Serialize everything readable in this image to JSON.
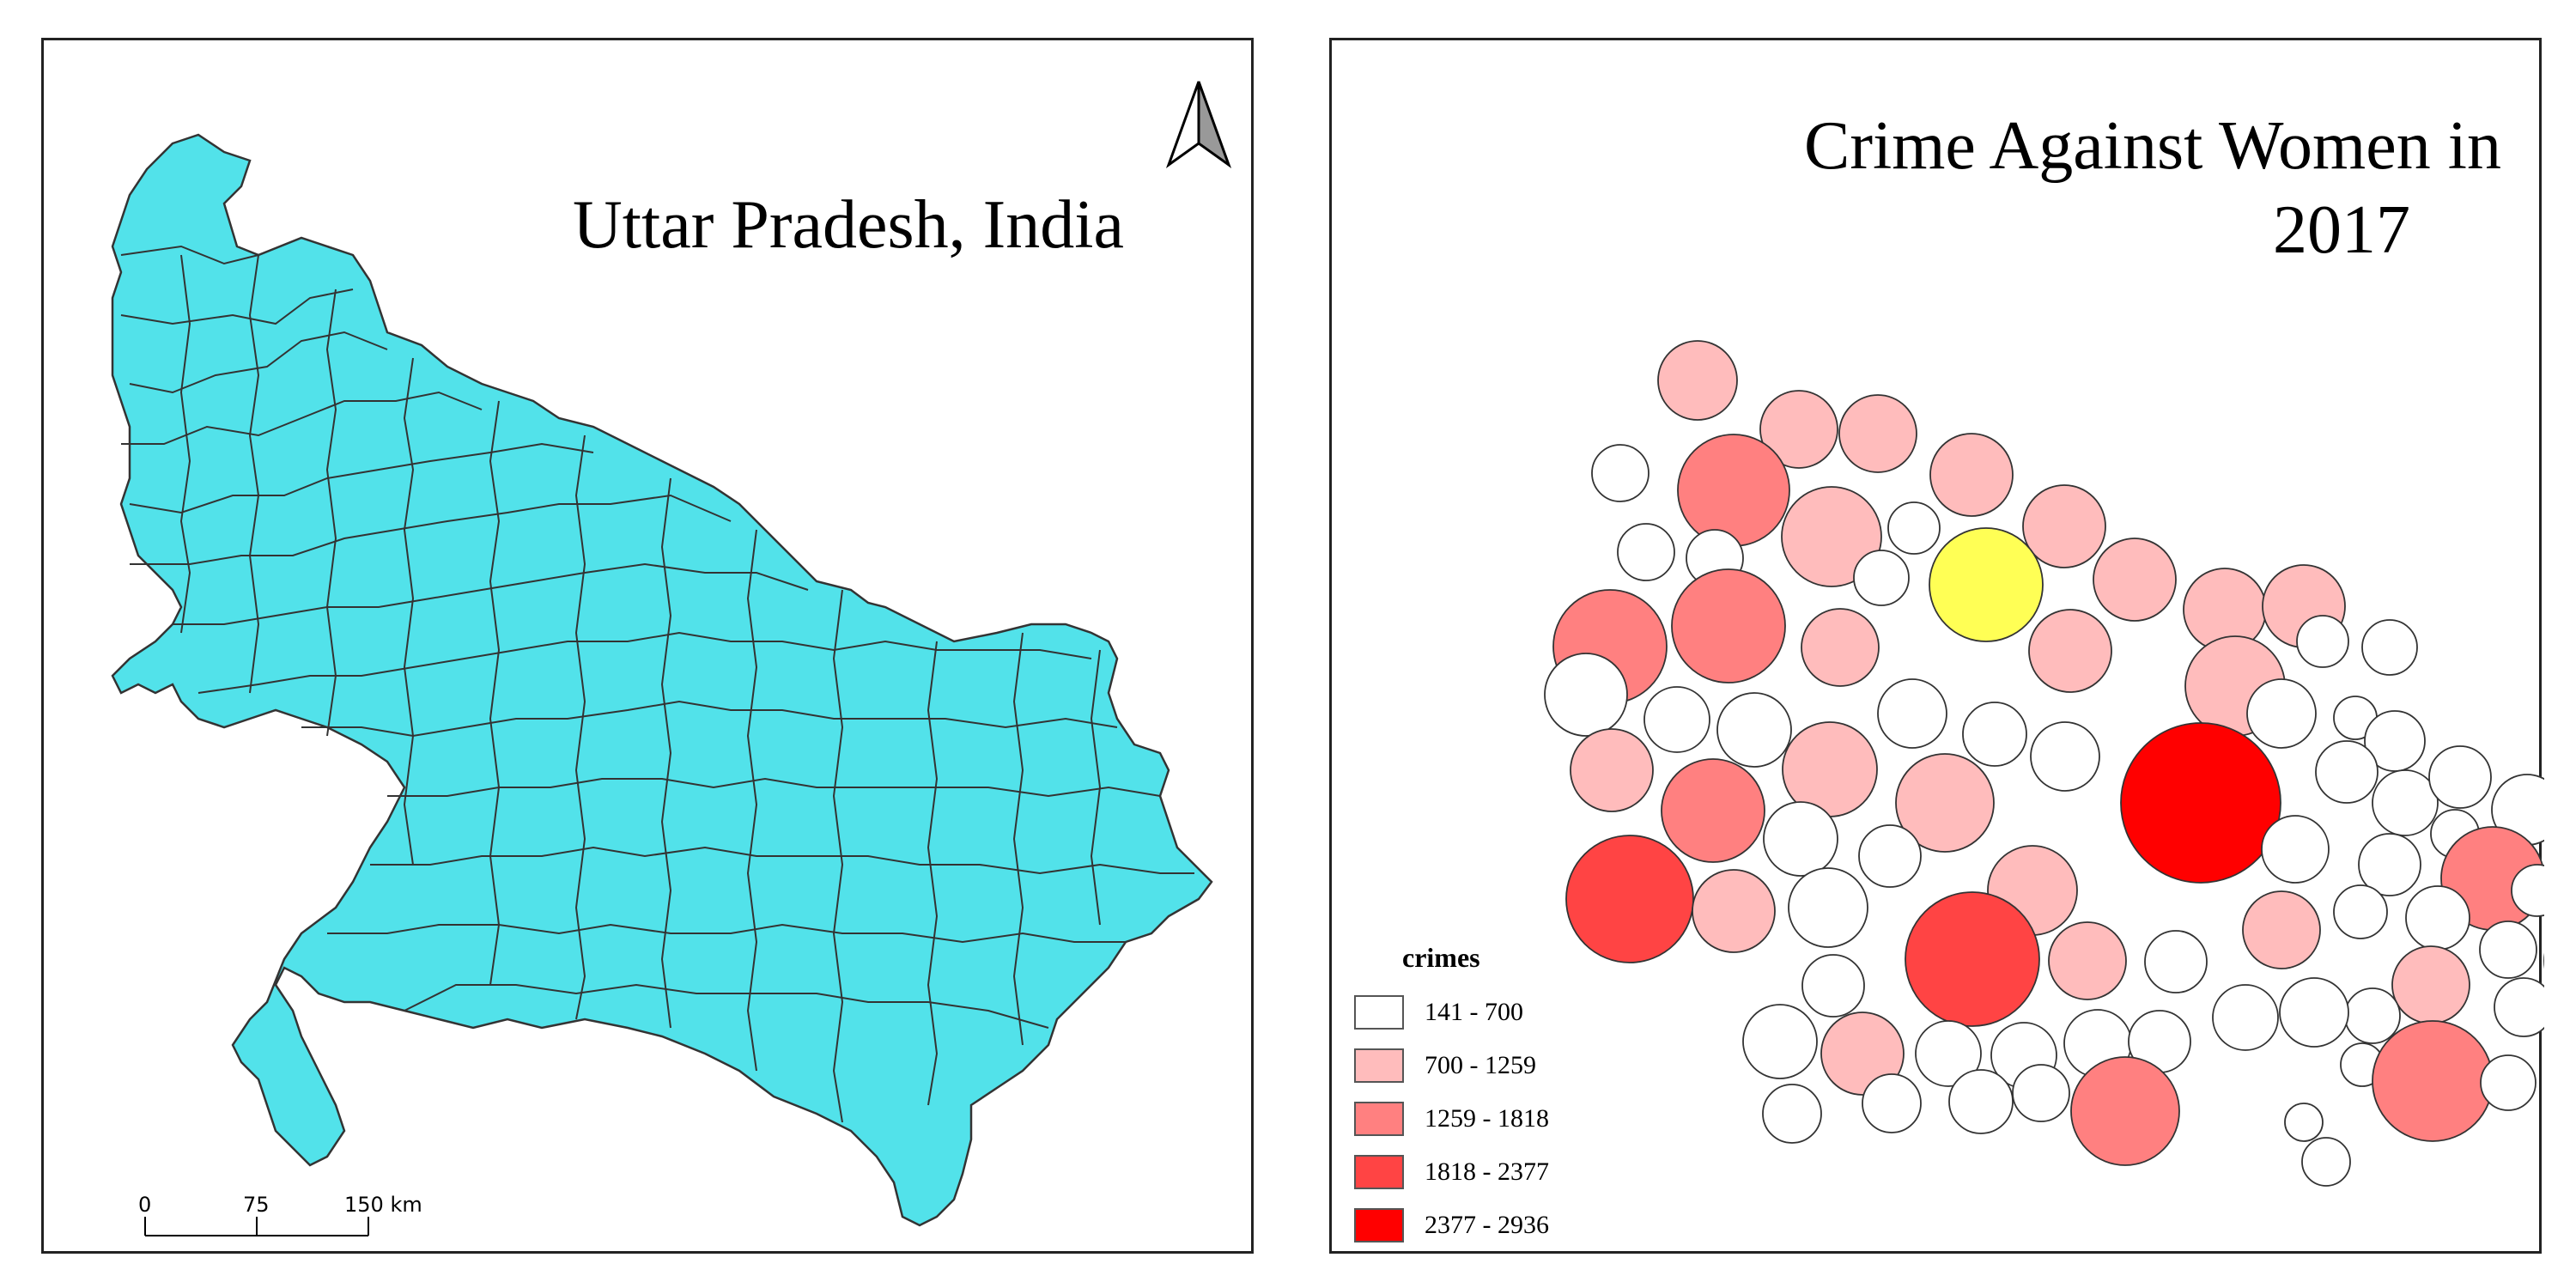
{
  "left_map": {
    "title": "Uttar Pradesh, India",
    "fill_color": "#52e2ea",
    "border_color": "#333333",
    "north_arrow_icon": "north-arrow-icon",
    "scale_bar": {
      "labels": [
        "0",
        "75",
        "150 km"
      ]
    }
  },
  "right_map": {
    "title_line1": "Crime Against Women in",
    "title_line2": "2017",
    "legend": {
      "title": "crimes",
      "classes": [
        {
          "label": "141 - 700",
          "color": "#ffffff"
        },
        {
          "label": "700 - 1259",
          "color": "#ffbcbc"
        },
        {
          "label": "1259 - 1818",
          "color": "#ff8080"
        },
        {
          "label": "1818 - 2377",
          "color": "#ff4444"
        },
        {
          "label": "2377 - 2936",
          "color": "#ff0000"
        }
      ],
      "highlight_color": "#ffff55"
    }
  }
}
